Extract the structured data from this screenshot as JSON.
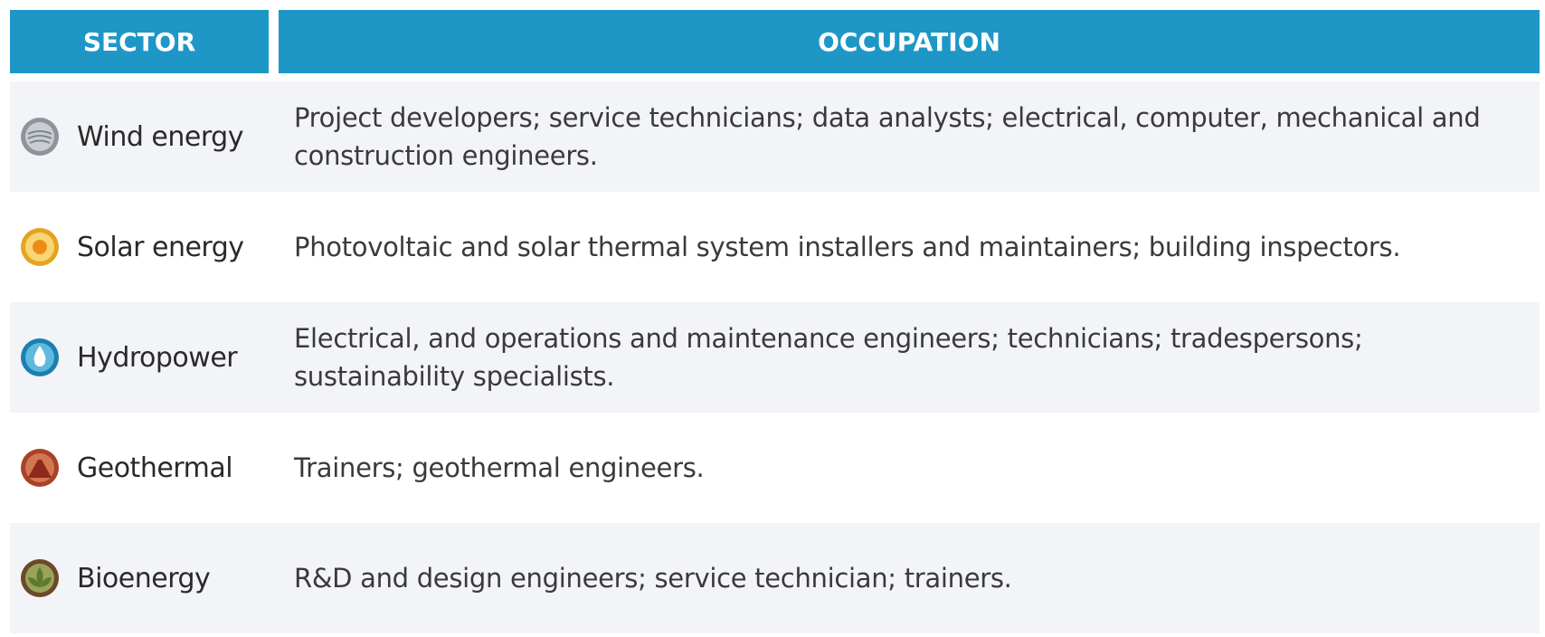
{
  "table": {
    "header": [
      "SECTOR",
      "OCCUPATION"
    ],
    "rows": [
      [
        "Wind energy",
        "Project developers; service technicians; data analysts; electrical, computer, mechanical and construction engineers."
      ],
      [
        "Solar energy",
        "Photovoltaic and solar thermal system installers and maintainers; building inspectors."
      ],
      [
        "Hydropower",
        "Electrical, and operations and maintenance engineers; technicians; tradespersons; sustainability specialists."
      ],
      [
        "Geothermal",
        "Trainers; geothermal engineers."
      ],
      [
        "Bioenergy",
        "R&D and design engineers; service technician; trainers."
      ]
    ]
  }
}
